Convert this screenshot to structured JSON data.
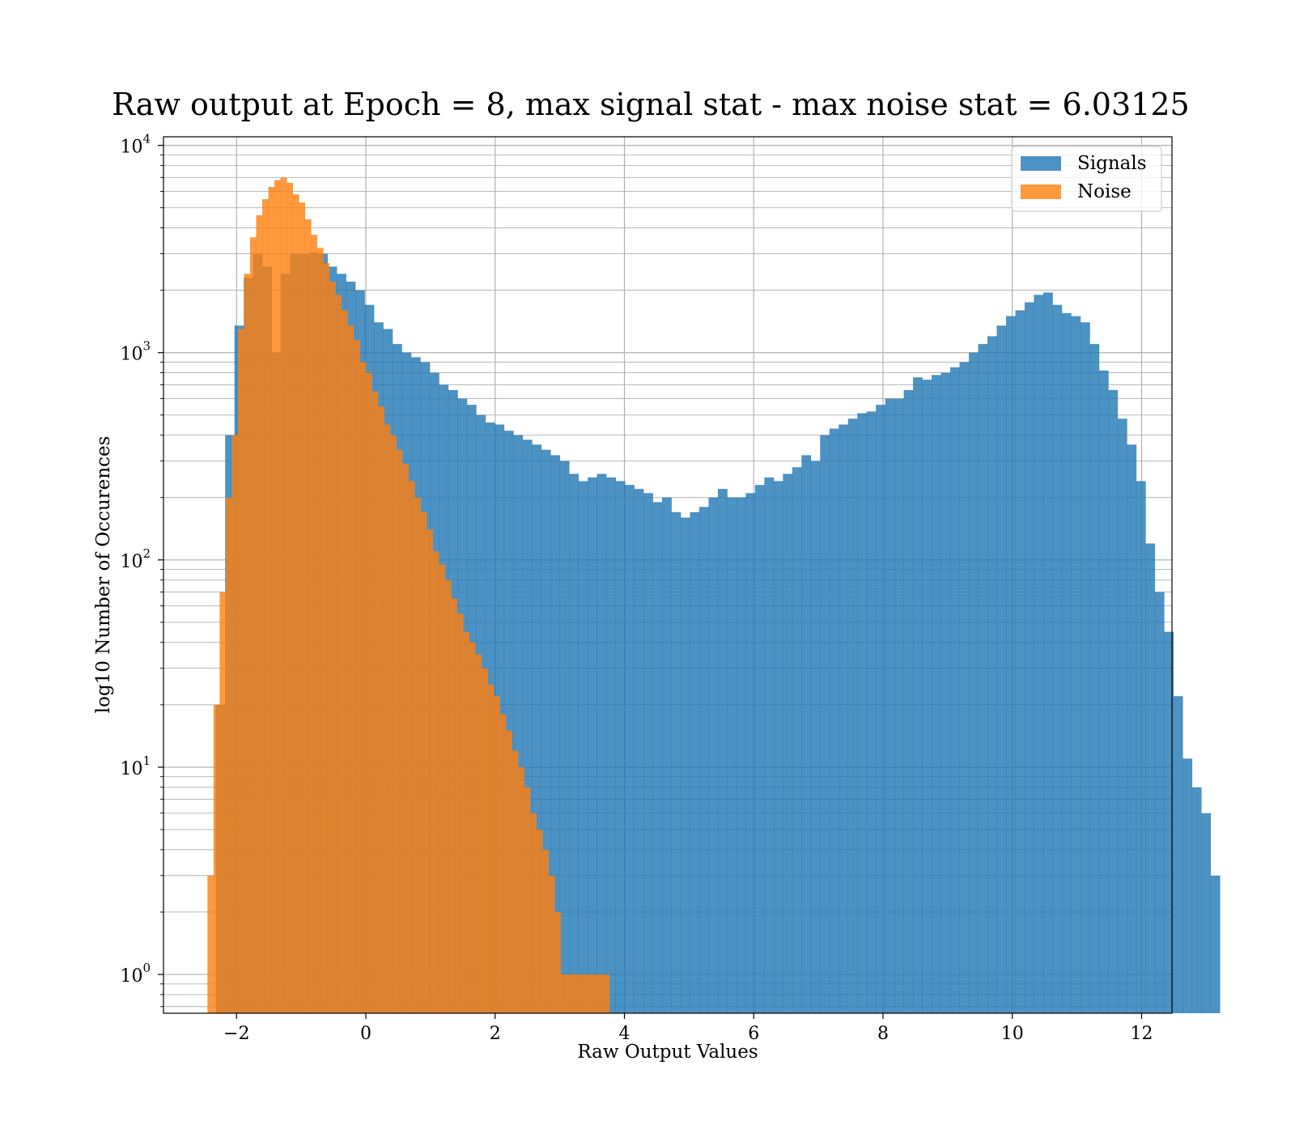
{
  "chart_data": {
    "type": "bar",
    "title": "Raw output at Epoch = 8, max signal stat - max noise stat = 6.03125",
    "xlabel": "Raw Output Values",
    "ylabel": "log10 Number of Occurences",
    "xlim": [
      -3.13,
      12.47
    ],
    "ylim": [
      0.65,
      11000
    ],
    "yscale": "log",
    "grid": true,
    "legend_position": "top-right",
    "x_ticks": [
      {
        "value": -2,
        "label": "−2"
      },
      {
        "value": 0,
        "label": "0"
      },
      {
        "value": 2,
        "label": "2"
      },
      {
        "value": 4,
        "label": "4"
      },
      {
        "value": 6,
        "label": "6"
      },
      {
        "value": 8,
        "label": "8"
      },
      {
        "value": 10,
        "label": "10"
      },
      {
        "value": 12,
        "label": "12"
      }
    ],
    "y_ticks": [
      {
        "value": 1,
        "base": "10",
        "exp": "0"
      },
      {
        "value": 10,
        "base": "10",
        "exp": "1"
      },
      {
        "value": 100,
        "base": "10",
        "exp": "2"
      },
      {
        "value": 1000,
        "base": "10",
        "exp": "3"
      },
      {
        "value": 10000,
        "base": "10",
        "exp": "4"
      }
    ],
    "series": [
      {
        "name": "Signals",
        "color": "#1f77b4",
        "opacity": 0.8,
        "bin_start": -2.32,
        "bin_width": 0.1438,
        "values": [
          20,
          400,
          1350,
          2300,
          3000,
          2600,
          1000,
          2400,
          3000,
          3000,
          3050,
          3000,
          2600,
          2400,
          2200,
          2000,
          1700,
          1400,
          1300,
          1100,
          1000,
          950,
          900,
          800,
          700,
          660,
          600,
          560,
          500,
          460,
          450,
          420,
          400,
          380,
          360,
          340,
          320,
          300,
          260,
          240,
          250,
          260,
          250,
          240,
          230,
          220,
          210,
          190,
          200,
          170,
          160,
          170,
          180,
          200,
          220,
          200,
          200,
          210,
          230,
          250,
          240,
          260,
          280,
          320,
          300,
          400,
          430,
          450,
          480,
          510,
          520,
          560,
          600,
          600,
          660,
          760,
          740,
          780,
          800,
          850,
          900,
          1000,
          1100,
          1200,
          1350,
          1500,
          1600,
          1750,
          1900,
          1950,
          1700,
          1550,
          1500,
          1400,
          1100,
          820,
          660,
          480,
          360,
          240,
          120,
          70,
          45,
          22,
          11,
          8,
          6,
          3
        ]
      },
      {
        "name": "Noise",
        "color": "#ff7f0e",
        "opacity": 0.8,
        "bin_start": -2.45,
        "bin_width": 0.0942,
        "values": [
          3,
          20,
          70,
          200,
          400,
          1300,
          2400,
          3600,
          4600,
          5500,
          6300,
          6800,
          7000,
          6600,
          5800,
          5300,
          4400,
          3700,
          3200,
          2700,
          2200,
          1900,
          1600,
          1350,
          1150,
          900,
          800,
          650,
          550,
          450,
          400,
          340,
          290,
          240,
          200,
          170,
          140,
          110,
          95,
          80,
          65,
          55,
          45,
          40,
          35,
          30,
          25,
          22,
          18,
          15,
          12,
          10,
          8,
          6,
          5,
          4,
          3,
          2,
          1,
          1,
          1,
          1,
          1,
          1,
          1,
          1
        ]
      }
    ]
  }
}
